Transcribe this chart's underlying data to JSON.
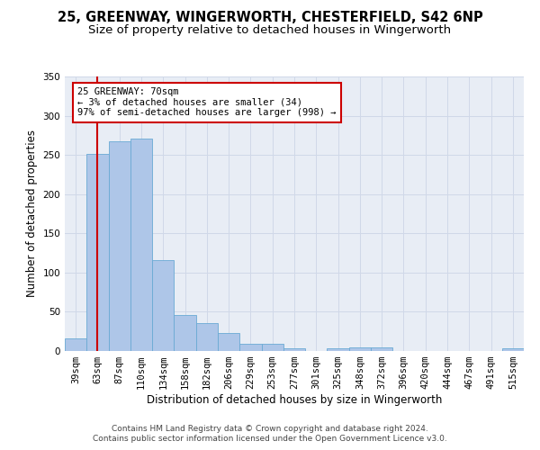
{
  "title1": "25, GREENWAY, WINGERWORTH, CHESTERFIELD, S42 6NP",
  "title2": "Size of property relative to detached houses in Wingerworth",
  "xlabel": "Distribution of detached houses by size in Wingerworth",
  "ylabel": "Number of detached properties",
  "categories": [
    "39sqm",
    "63sqm",
    "87sqm",
    "110sqm",
    "134sqm",
    "158sqm",
    "182sqm",
    "206sqm",
    "229sqm",
    "253sqm",
    "277sqm",
    "301sqm",
    "325sqm",
    "348sqm",
    "372sqm",
    "396sqm",
    "420sqm",
    "444sqm",
    "467sqm",
    "491sqm",
    "515sqm"
  ],
  "values": [
    16,
    251,
    267,
    271,
    116,
    46,
    36,
    23,
    9,
    9,
    3,
    0,
    4,
    5,
    5,
    0,
    0,
    0,
    0,
    0,
    3
  ],
  "bar_color": "#aec6e8",
  "bar_edge_color": "#6aaad4",
  "vline_x": 1,
  "vline_color": "#cc0000",
  "annotation_text": "25 GREENWAY: 70sqm\n← 3% of detached houses are smaller (34)\n97% of semi-detached houses are larger (998) →",
  "annotation_box_color": "#ffffff",
  "annotation_box_edge": "#cc0000",
  "ylim": [
    0,
    350
  ],
  "yticks": [
    0,
    50,
    100,
    150,
    200,
    250,
    300,
    350
  ],
  "grid_color": "#d0d8e8",
  "bg_color": "#e8edf5",
  "footer1": "Contains HM Land Registry data © Crown copyright and database right 2024.",
  "footer2": "Contains public sector information licensed under the Open Government Licence v3.0.",
  "title_fontsize": 10.5,
  "subtitle_fontsize": 9.5,
  "axis_label_fontsize": 8.5,
  "tick_fontsize": 7.5,
  "annotation_fontsize": 7.5,
  "footer_fontsize": 6.5
}
